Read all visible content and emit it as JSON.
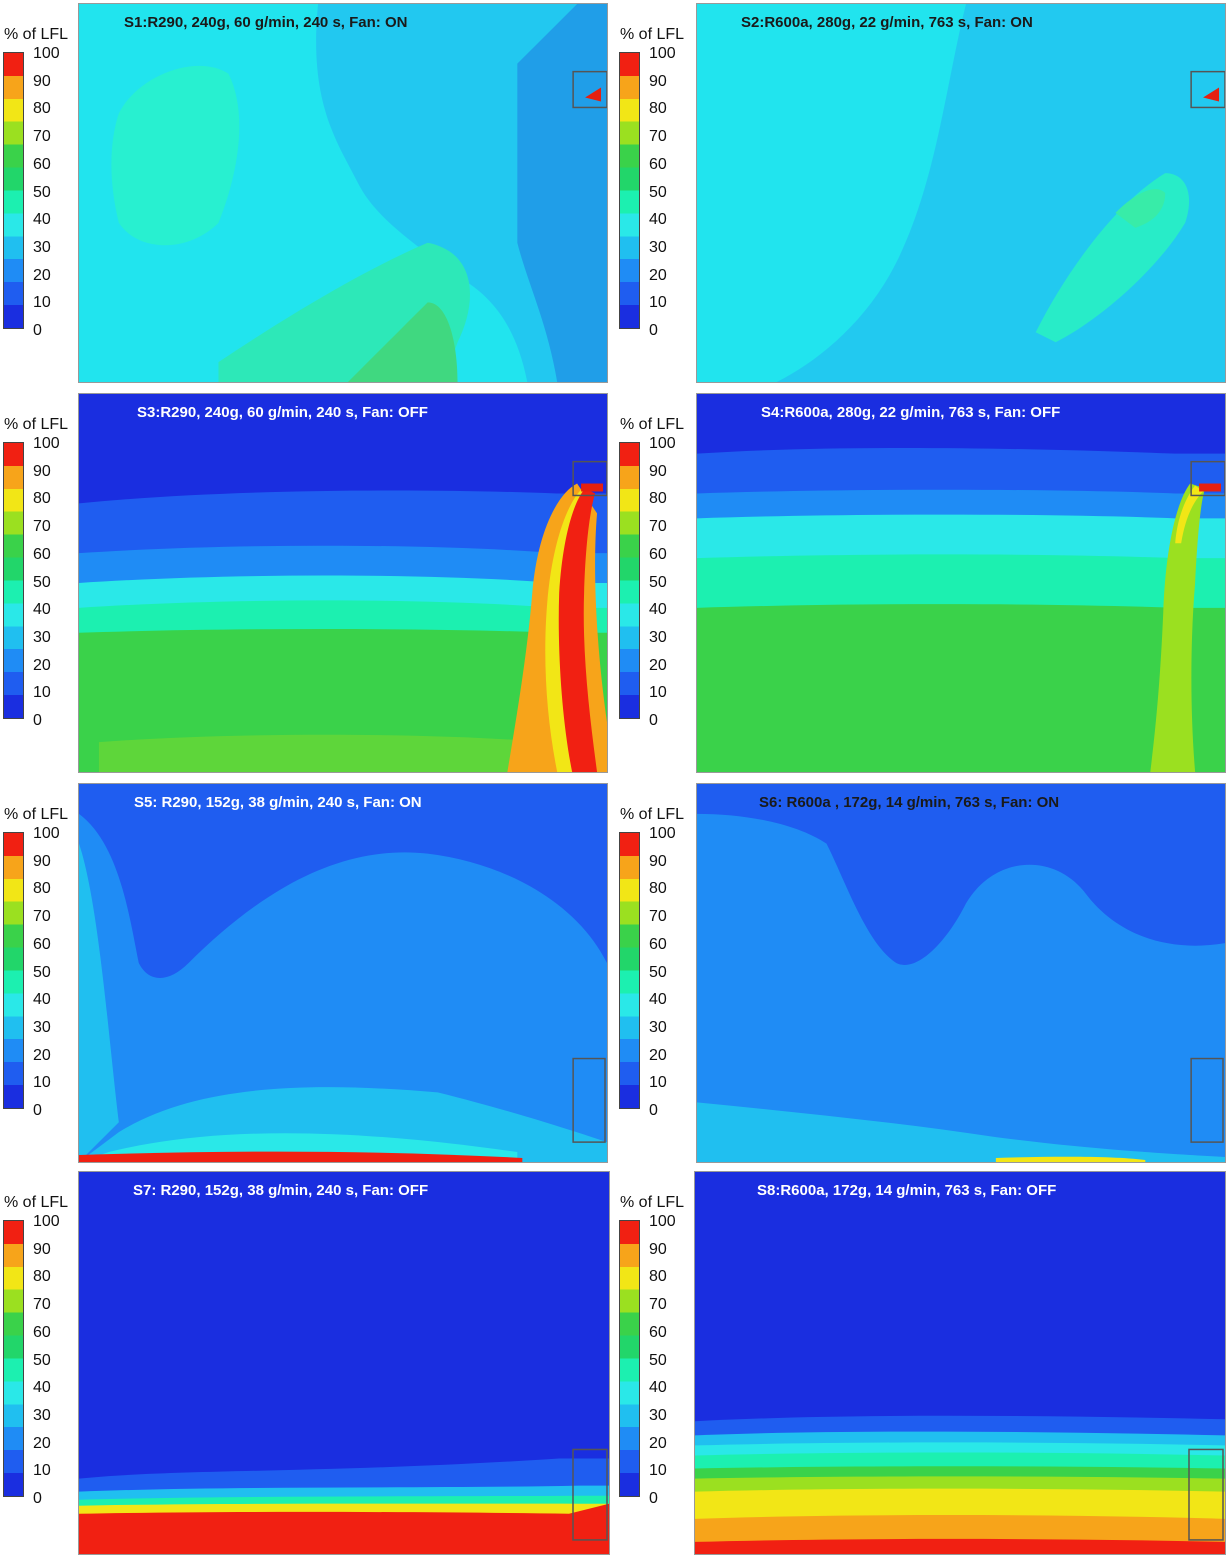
{
  "legend": {
    "title": "% of LFL",
    "ticks": [
      "100",
      "90",
      "80",
      "70",
      "60",
      "50",
      "40",
      "30",
      "20",
      "10",
      "0"
    ]
  },
  "colors": {
    "c0": "#1a2ee0",
    "c10": "#1f5df0",
    "c20": "#1f8cf5",
    "c25": "#20bff0",
    "c30": "#2ae8e8",
    "c40": "#1cf0b0",
    "c50": "#22d66a",
    "c60": "#3ad24a",
    "c70": "#9be020",
    "c80": "#f2e616",
    "c90": "#f7a41a",
    "c100": "#f12012"
  },
  "panels": [
    {
      "id": "s1",
      "title": "S1:R290, 240g, 60 g/min, 240 s, Fan: ON"
    },
    {
      "id": "s2",
      "title": "S2:R600a, 280g, 22 g/min, 763 s, Fan: ON"
    },
    {
      "id": "s3",
      "title": "S3:R290, 240g, 60 g/min, 240 s, Fan: OFF"
    },
    {
      "id": "s4",
      "title": "S4:R600a, 280g, 22 g/min, 763 s, Fan: OFF"
    },
    {
      "id": "s5",
      "title": "S5: R290, 152g, 38 g/min, 240 s, Fan: ON"
    },
    {
      "id": "s6",
      "title": "S6: R600a , 172g, 14 g/min, 763 s, Fan: ON"
    },
    {
      "id": "s7",
      "title": "S7: R290, 152g, 38 g/min, 240 s, Fan: OFF"
    },
    {
      "id": "s8",
      "title": "S8:R600a, 172g, 14 g/min, 763 s, Fan: OFF"
    }
  ]
}
